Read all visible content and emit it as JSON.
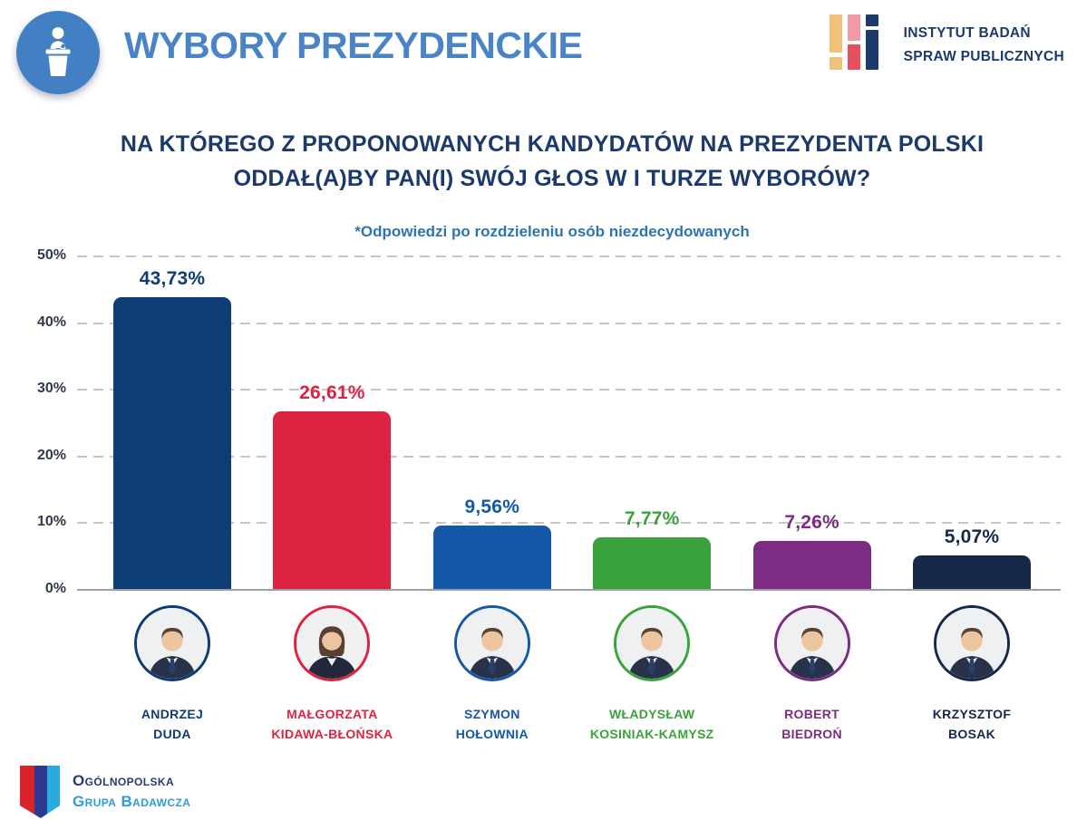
{
  "colors": {
    "title_blue": "#4a84c7",
    "badge_blue": "#4380c3",
    "question_navy": "#1b3a6b",
    "note_blue": "#2d74b5",
    "axis_label": "#30394a",
    "gridline": "#c6c6c6",
    "baseline": "#9aa0a6"
  },
  "icons": {
    "header_badge": "speaker-at-podium-icon"
  },
  "header": {
    "title": "WYBORY PREZYDENCKIE",
    "institute": {
      "line1": "INSTYTUT BADAŃ",
      "line2": "SPRAW PUBLICZNYCH",
      "mark_colors": {
        "orange": "#f2c178",
        "pink": "#f09aa6",
        "red": "#e4505e",
        "navy": "#1b3a6b"
      }
    }
  },
  "question": {
    "line1": "NA KTÓREGO Z PROPONOWANYCH KANDYDATÓW NA PREZYDENTA POLSKI",
    "line2": "ODDAŁ(A)BY PAN(I) SWÓJ GŁOS W I TURZE WYBORÓW?",
    "note": "*Odpowiedzi po rozdzieleniu osób niezdecydowanych"
  },
  "chart_data": {
    "type": "bar",
    "title": "",
    "xlabel": "",
    "ylabel": "",
    "categories": [
      "Andrzej Duda",
      "Małgorzata Kidawa-Błońska",
      "Szymon Hołownia",
      "Władysław Kosiniak-Kamysz",
      "Robert Biedroń",
      "Krzysztof Bosak"
    ],
    "values": [
      43.73,
      26.61,
      9.56,
      7.77,
      7.26,
      5.07
    ],
    "value_labels": [
      "43,73%",
      "26,61%",
      "9,56%",
      "7,77%",
      "7,26%",
      "5,07%"
    ],
    "bar_colors": [
      "#0e3c75",
      "#de2342",
      "#1558a8",
      "#3aa23a",
      "#7c2c82",
      "#17284a"
    ],
    "ylim": [
      0,
      50
    ],
    "y_ticks": [
      "50%",
      "40%",
      "30%",
      "20%",
      "10%",
      "0%"
    ],
    "grid": "horizontal-dashed",
    "legend": "none"
  },
  "candidates": [
    {
      "id": "duda",
      "name_line1": "ANDRZEJ",
      "name_line2": "DUDA",
      "value": 43.73,
      "value_label": "43,73%",
      "color": "#0e3c75",
      "portrait": "male"
    },
    {
      "id": "kidawa",
      "name_line1": "MAŁGORZATA",
      "name_line2": "KIDAWA-BŁOŃSKA",
      "value": 26.61,
      "value_label": "26,61%",
      "color": "#de2342",
      "portrait": "female"
    },
    {
      "id": "holownia",
      "name_line1": "SZYMON",
      "name_line2": "HOŁOWNIA",
      "value": 9.56,
      "value_label": "9,56%",
      "color": "#1558a8",
      "portrait": "male"
    },
    {
      "id": "kosiniak",
      "name_line1": "WŁADYSŁAW",
      "name_line2": "KOSINIAK-KAMYSZ",
      "value": 7.77,
      "value_label": "7,77%",
      "color": "#3aa23a",
      "portrait": "male"
    },
    {
      "id": "biedron",
      "name_line1": "ROBERT",
      "name_line2": "BIEDROŃ",
      "value": 7.26,
      "value_label": "7,26%",
      "color": "#7c2c82",
      "portrait": "male"
    },
    {
      "id": "bosak",
      "name_line1": "KRZYSZTOF",
      "name_line2": "BOSAK",
      "value": 5.07,
      "value_label": "5,07%",
      "color": "#17284a",
      "portrait": "male"
    }
  ],
  "footer": {
    "ogb": {
      "line1": "Ogólnopolska",
      "line2": "Grupa Badawcza",
      "line1_color": "#2b3a6e",
      "line2_color": "#2e9cd6",
      "mark_colors": {
        "red": "#d8232a",
        "navy": "#2b3990",
        "light_blue": "#29abe2"
      }
    }
  }
}
